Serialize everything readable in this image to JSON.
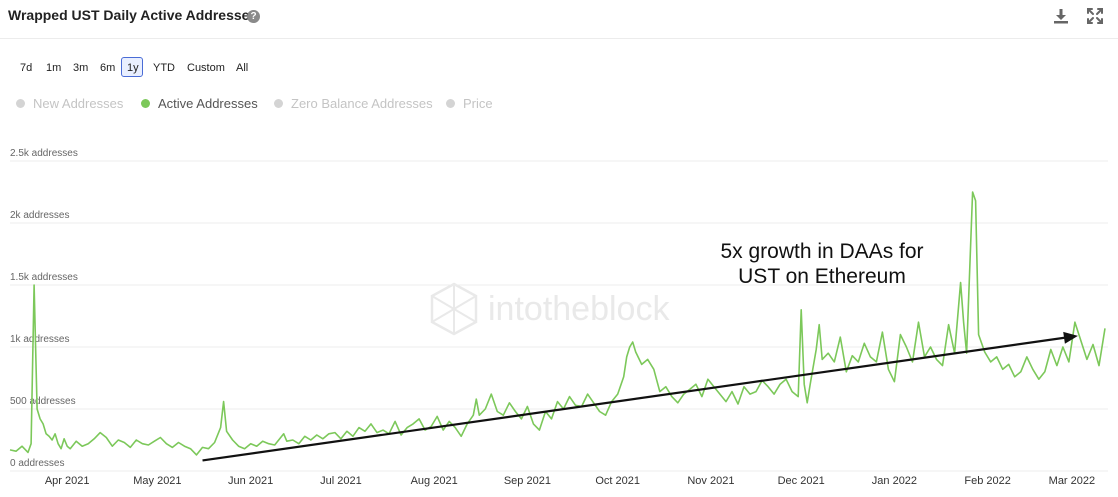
{
  "header": {
    "title": "Wrapped UST Daily Active Addresses",
    "help_icon": "question-circle-icon",
    "download_icon": "download-icon",
    "fullscreen_icon": "expand-icon"
  },
  "ranges": [
    {
      "label": "7d",
      "active": false
    },
    {
      "label": "1m",
      "active": false
    },
    {
      "label": "3m",
      "active": false
    },
    {
      "label": "6m",
      "active": false
    },
    {
      "label": "1y",
      "active": true
    },
    {
      "label": "YTD",
      "active": false
    },
    {
      "label": "Custom",
      "active": false
    },
    {
      "label": "All",
      "active": false
    }
  ],
  "legend": [
    {
      "label": "New Addresses",
      "active": false,
      "color": "#d4d4d4"
    },
    {
      "label": "Active Addresses",
      "active": true,
      "color": "#7cc85a"
    },
    {
      "label": "Zero Balance Addresses",
      "active": false,
      "color": "#d4d4d4"
    },
    {
      "label": "Price",
      "active": false,
      "color": "#d4d4d4"
    }
  ],
  "watermark": "intotheblock",
  "chart_data": {
    "type": "line",
    "title": "Wrapped UST Daily Active Addresses",
    "y_ticks": [
      "0 addresses",
      "500 addresses",
      "1k addresses",
      "1.5k addresses",
      "2k addresses",
      "2.5k addresses"
    ],
    "y_tick_values": [
      0,
      500,
      1000,
      1500,
      2000,
      2500
    ],
    "ylim": [
      0,
      2500
    ],
    "x_ticks": [
      "Apr 2021",
      "May 2021",
      "Jun 2021",
      "Jul 2021",
      "Aug 2021",
      "Sep 2021",
      "Oct 2021",
      "Nov 2021",
      "Dec 2021",
      "Jan 2022",
      "Feb 2022",
      "Mar 2022"
    ],
    "x_tick_days": [
      19,
      49,
      80,
      110,
      141,
      172,
      202,
      233,
      263,
      294,
      325,
      353
    ],
    "xlim_days": [
      0,
      365
    ],
    "grid": true,
    "series": [
      {
        "name": "Active Addresses",
        "color": "#7cc85a",
        "points": [
          [
            0,
            170
          ],
          [
            2,
            160
          ],
          [
            4,
            200
          ],
          [
            6,
            150
          ],
          [
            7,
            220
          ],
          [
            8,
            1500
          ],
          [
            9,
            500
          ],
          [
            10,
            420
          ],
          [
            11,
            380
          ],
          [
            12,
            300
          ],
          [
            13,
            280
          ],
          [
            14,
            250
          ],
          [
            15,
            300
          ],
          [
            16,
            220
          ],
          [
            17,
            180
          ],
          [
            18,
            260
          ],
          [
            19,
            200
          ],
          [
            20,
            180
          ],
          [
            22,
            240
          ],
          [
            24,
            200
          ],
          [
            26,
            220
          ],
          [
            28,
            260
          ],
          [
            30,
            310
          ],
          [
            32,
            270
          ],
          [
            34,
            200
          ],
          [
            36,
            250
          ],
          [
            38,
            230
          ],
          [
            40,
            190
          ],
          [
            42,
            250
          ],
          [
            44,
            220
          ],
          [
            46,
            210
          ],
          [
            48,
            240
          ],
          [
            50,
            270
          ],
          [
            52,
            220
          ],
          [
            54,
            190
          ],
          [
            56,
            230
          ],
          [
            58,
            200
          ],
          [
            60,
            180
          ],
          [
            62,
            130
          ],
          [
            64,
            190
          ],
          [
            66,
            180
          ],
          [
            68,
            230
          ],
          [
            70,
            350
          ],
          [
            71,
            560
          ],
          [
            72,
            320
          ],
          [
            74,
            250
          ],
          [
            76,
            200
          ],
          [
            78,
            180
          ],
          [
            80,
            220
          ],
          [
            82,
            200
          ],
          [
            84,
            240
          ],
          [
            86,
            220
          ],
          [
            88,
            210
          ],
          [
            90,
            270
          ],
          [
            91,
            300
          ],
          [
            92,
            240
          ],
          [
            94,
            250
          ],
          [
            96,
            220
          ],
          [
            98,
            280
          ],
          [
            100,
            250
          ],
          [
            102,
            290
          ],
          [
            104,
            260
          ],
          [
            106,
            300
          ],
          [
            108,
            310
          ],
          [
            110,
            260
          ],
          [
            112,
            320
          ],
          [
            114,
            280
          ],
          [
            116,
            350
          ],
          [
            118,
            320
          ],
          [
            120,
            380
          ],
          [
            122,
            310
          ],
          [
            124,
            330
          ],
          [
            126,
            300
          ],
          [
            128,
            400
          ],
          [
            130,
            290
          ],
          [
            132,
            350
          ],
          [
            134,
            380
          ],
          [
            136,
            420
          ],
          [
            138,
            330
          ],
          [
            140,
            360
          ],
          [
            142,
            440
          ],
          [
            144,
            330
          ],
          [
            146,
            400
          ],
          [
            148,
            350
          ],
          [
            150,
            280
          ],
          [
            152,
            380
          ],
          [
            154,
            450
          ],
          [
            155,
            580
          ],
          [
            156,
            450
          ],
          [
            158,
            500
          ],
          [
            160,
            620
          ],
          [
            162,
            480
          ],
          [
            164,
            450
          ],
          [
            166,
            550
          ],
          [
            168,
            480
          ],
          [
            170,
            420
          ],
          [
            172,
            520
          ],
          [
            174,
            380
          ],
          [
            176,
            330
          ],
          [
            178,
            480
          ],
          [
            180,
            420
          ],
          [
            182,
            560
          ],
          [
            184,
            500
          ],
          [
            186,
            600
          ],
          [
            188,
            530
          ],
          [
            190,
            520
          ],
          [
            192,
            620
          ],
          [
            194,
            550
          ],
          [
            196,
            480
          ],
          [
            198,
            450
          ],
          [
            200,
            560
          ],
          [
            202,
            620
          ],
          [
            204,
            760
          ],
          [
            205,
            920
          ],
          [
            206,
            1000
          ],
          [
            207,
            1040
          ],
          [
            208,
            960
          ],
          [
            210,
            860
          ],
          [
            212,
            900
          ],
          [
            214,
            820
          ],
          [
            216,
            640
          ],
          [
            218,
            680
          ],
          [
            220,
            600
          ],
          [
            222,
            550
          ],
          [
            224,
            620
          ],
          [
            226,
            660
          ],
          [
            228,
            700
          ],
          [
            230,
            600
          ],
          [
            232,
            740
          ],
          [
            234,
            680
          ],
          [
            236,
            620
          ],
          [
            238,
            560
          ],
          [
            240,
            640
          ],
          [
            242,
            540
          ],
          [
            244,
            680
          ],
          [
            246,
            620
          ],
          [
            248,
            640
          ],
          [
            250,
            730
          ],
          [
            252,
            680
          ],
          [
            254,
            620
          ],
          [
            256,
            700
          ],
          [
            258,
            740
          ],
          [
            260,
            640
          ],
          [
            262,
            600
          ],
          [
            263,
            1300
          ],
          [
            264,
            700
          ],
          [
            265,
            550
          ],
          [
            266,
            700
          ],
          [
            268,
            980
          ],
          [
            269,
            1180
          ],
          [
            270,
            900
          ],
          [
            272,
            950
          ],
          [
            274,
            880
          ],
          [
            276,
            1080
          ],
          [
            278,
            800
          ],
          [
            280,
            930
          ],
          [
            282,
            880
          ],
          [
            284,
            1030
          ],
          [
            286,
            920
          ],
          [
            288,
            880
          ],
          [
            290,
            1120
          ],
          [
            292,
            820
          ],
          [
            294,
            720
          ],
          [
            296,
            1100
          ],
          [
            298,
            1000
          ],
          [
            300,
            880
          ],
          [
            302,
            1200
          ],
          [
            304,
            920
          ],
          [
            306,
            1000
          ],
          [
            308,
            900
          ],
          [
            310,
            850
          ],
          [
            312,
            1180
          ],
          [
            314,
            950
          ],
          [
            316,
            1520
          ],
          [
            317,
            1200
          ],
          [
            318,
            950
          ],
          [
            320,
            2250
          ],
          [
            321,
            2180
          ],
          [
            322,
            1100
          ],
          [
            324,
            960
          ],
          [
            326,
            880
          ],
          [
            328,
            920
          ],
          [
            330,
            820
          ],
          [
            332,
            860
          ],
          [
            334,
            760
          ],
          [
            336,
            800
          ],
          [
            338,
            920
          ],
          [
            340,
            820
          ],
          [
            342,
            740
          ],
          [
            344,
            800
          ],
          [
            346,
            980
          ],
          [
            348,
            850
          ],
          [
            350,
            1000
          ],
          [
            352,
            880
          ],
          [
            354,
            1200
          ],
          [
            356,
            1050
          ],
          [
            358,
            900
          ],
          [
            360,
            1020
          ],
          [
            362,
            850
          ],
          [
            364,
            1150
          ]
        ]
      }
    ],
    "annotation": {
      "text_lines": [
        "5x growth in DAAs for",
        "UST on Ethereum"
      ],
      "arrow_start": [
        64,
        85
      ],
      "arrow_end": [
        355,
        1090
      ]
    }
  }
}
